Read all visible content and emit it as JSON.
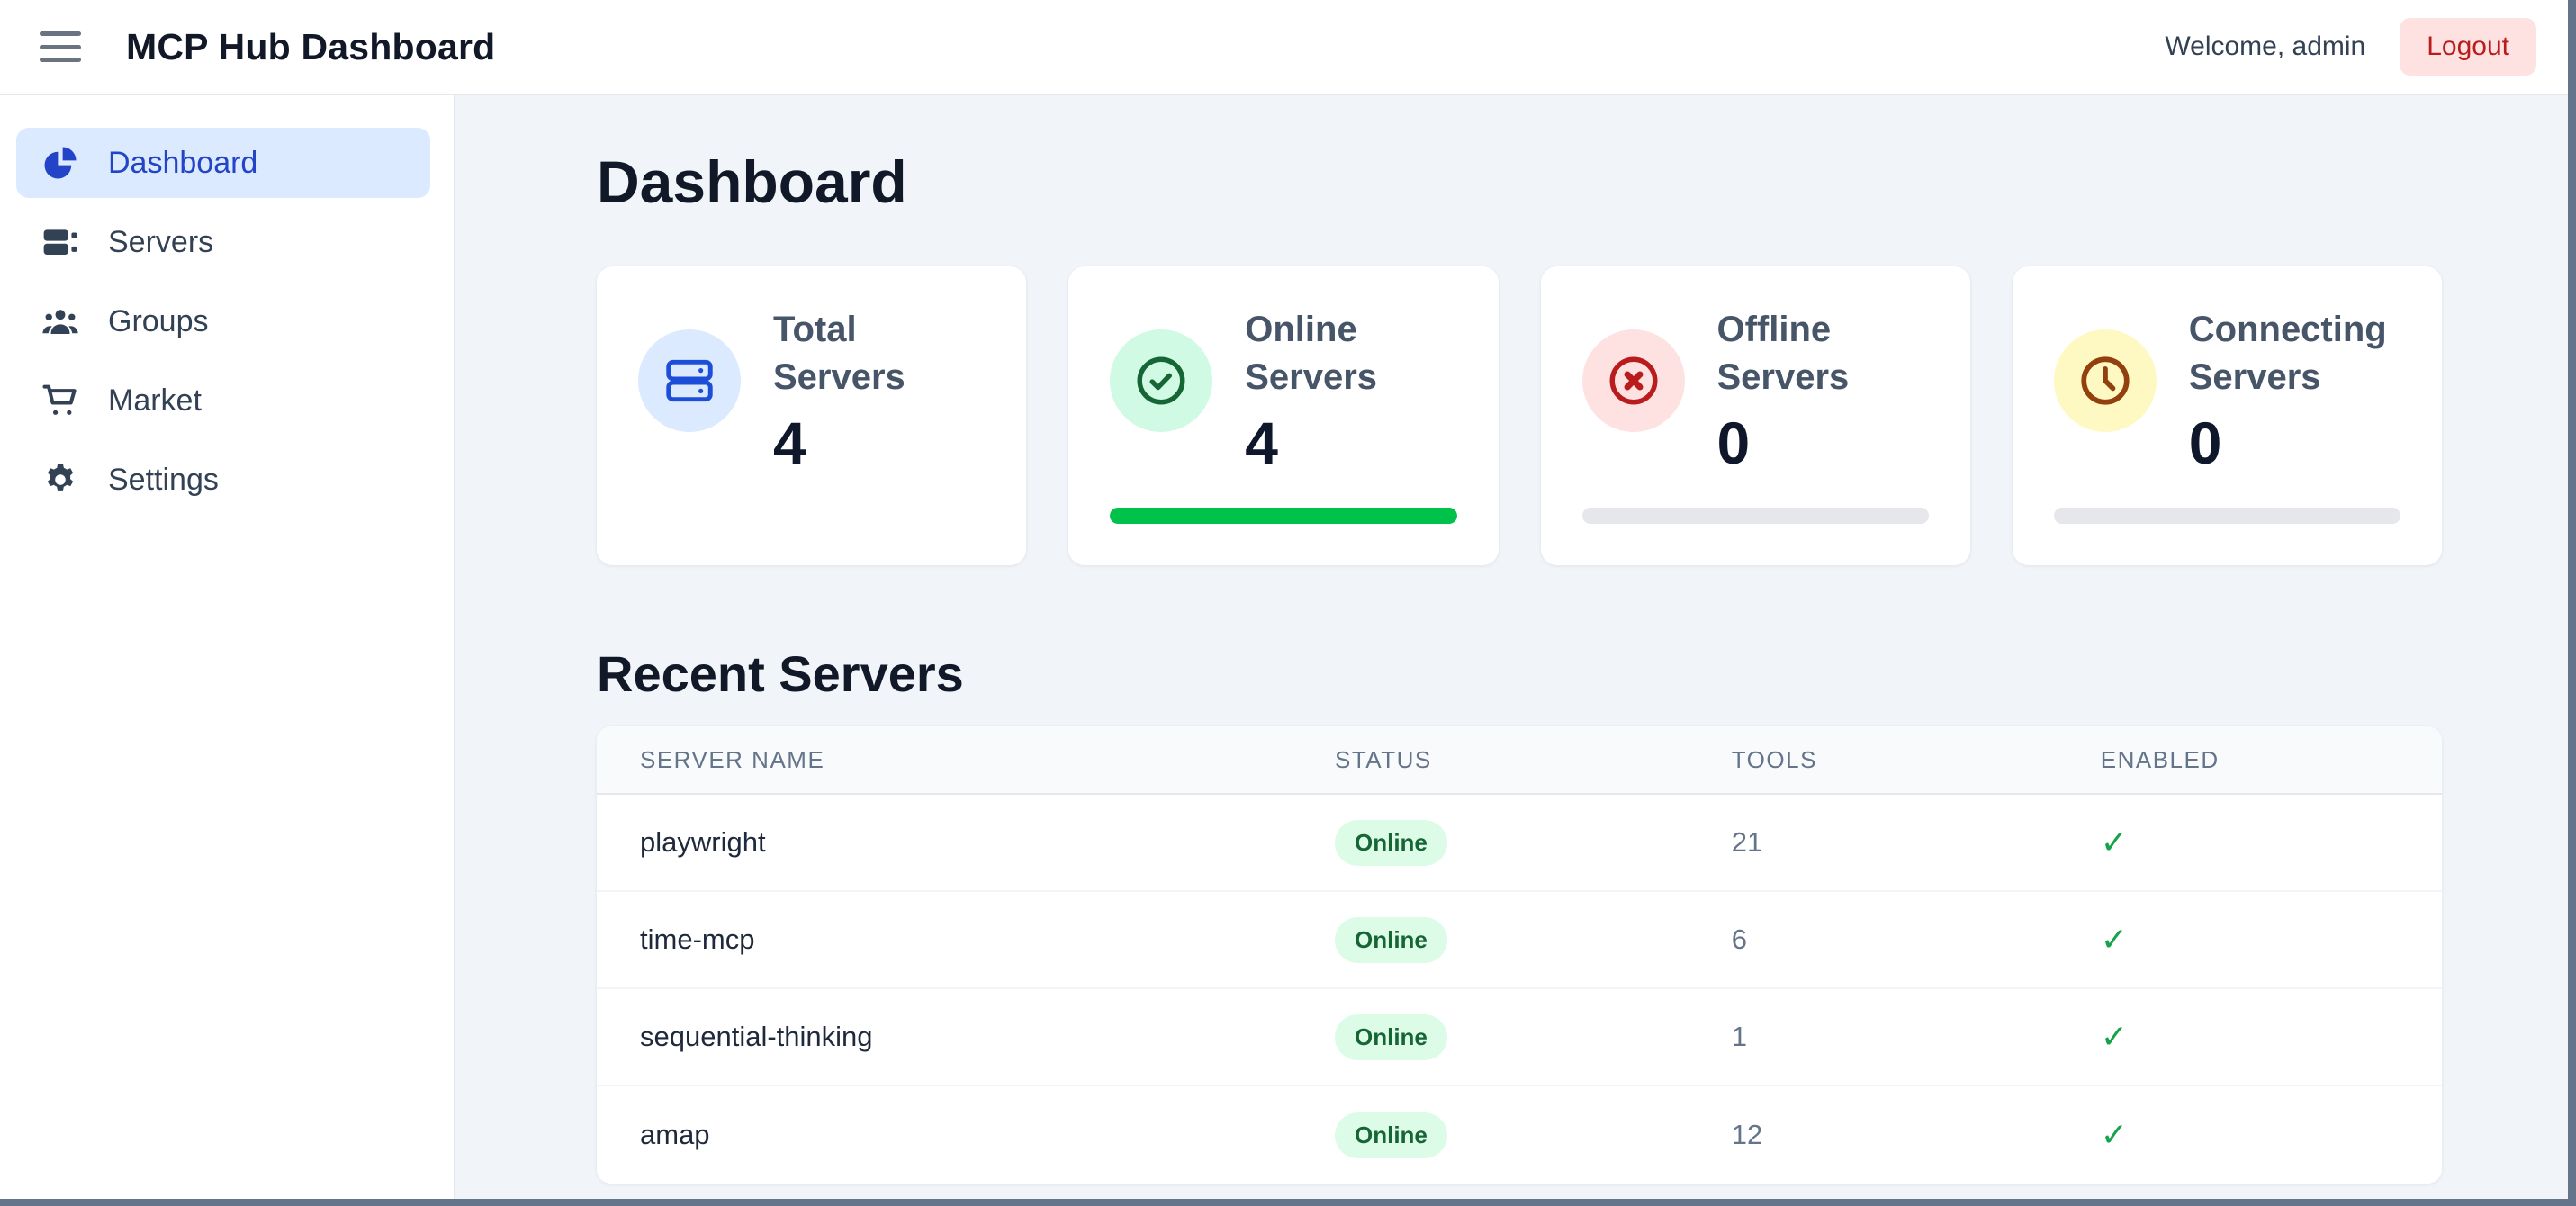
{
  "header": {
    "title": "MCP Hub Dashboard",
    "welcome": "Welcome, admin",
    "logout_label": "Logout"
  },
  "sidebar": {
    "items": [
      {
        "label": "Dashboard",
        "icon": "chart-pie-icon",
        "active": true
      },
      {
        "label": "Servers",
        "icon": "server-icon",
        "active": false
      },
      {
        "label": "Groups",
        "icon": "users-icon",
        "active": false
      },
      {
        "label": "Market",
        "icon": "cart-icon",
        "active": false
      },
      {
        "label": "Settings",
        "icon": "gear-icon",
        "active": false
      }
    ]
  },
  "main": {
    "page_title": "Dashboard",
    "stat_cards": [
      {
        "label": "Total Servers",
        "value": "4",
        "icon": "server-outline-icon",
        "icon_color": "#1d4ed8",
        "icon_bg": "#dbeafe",
        "progress": null
      },
      {
        "label": "Online Servers",
        "value": "4",
        "icon": "check-circle-icon",
        "icon_color": "#166534",
        "icon_bg": "#d1fae5",
        "progress": {
          "percent": 100,
          "color": "#00c24b"
        }
      },
      {
        "label": "Offline Servers",
        "value": "0",
        "icon": "x-circle-icon",
        "icon_color": "#b91c1c",
        "icon_bg": "#fee2e2",
        "progress": {
          "percent": 0,
          "color": "#e5e7eb"
        }
      },
      {
        "label": "Connecting Servers",
        "value": "0",
        "icon": "clock-icon",
        "icon_color": "#92400e",
        "icon_bg": "#fef9c3",
        "progress": {
          "percent": 0,
          "color": "#e5e7eb"
        }
      }
    ],
    "recent": {
      "title": "Recent Servers",
      "table": {
        "columns": [
          "SERVER NAME",
          "STATUS",
          "TOOLS",
          "ENABLED"
        ],
        "rows": [
          {
            "name": "playwright",
            "status": "Online",
            "tools": "21",
            "enabled": "✓"
          },
          {
            "name": "time-mcp",
            "status": "Online",
            "tools": "6",
            "enabled": "✓"
          },
          {
            "name": "sequential-thinking",
            "status": "Online",
            "tools": "1",
            "enabled": "✓"
          },
          {
            "name": "amap",
            "status": "Online",
            "tools": "12",
            "enabled": "✓"
          }
        ]
      }
    }
  },
  "colors": {
    "accent_blue": "#1d4ed8",
    "active_item_bg": "#dbeafe",
    "online_bar_green": "#00c24b",
    "badge_online_bg": "#dcfce7",
    "badge_online_text": "#166534",
    "offline_red": "#b91c1c",
    "connecting_amber": "#92400e",
    "logout_bg": "#fee2e2",
    "logout_text": "#b91c1c",
    "track_gray": "#e5e7eb",
    "scrollbar_gray": "#64748b"
  }
}
